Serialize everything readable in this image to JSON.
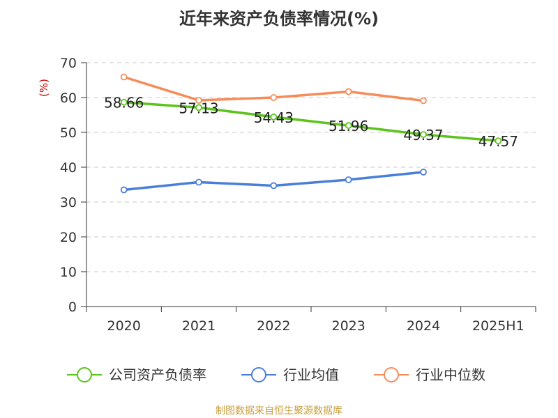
{
  "chart_data": {
    "type": "line",
    "title": "近年来资产负债率情况(%)",
    "ylabel": "(%)",
    "xlabel": "",
    "categories": [
      "2020",
      "2021",
      "2022",
      "2023",
      "2024",
      "2025H1"
    ],
    "ylim": [
      0,
      70
    ],
    "yticks": [
      0,
      10,
      20,
      30,
      40,
      50,
      60,
      70
    ],
    "grid": true,
    "legend_position": "bottom",
    "series": [
      {
        "name": "公司资产负债率",
        "color": "#5cc41c",
        "values": [
          58.66,
          57.13,
          54.43,
          51.96,
          49.37,
          47.57
        ],
        "data_labels": [
          "58.66",
          "57.13",
          "54.43",
          "51.96",
          "49.37",
          "47.57"
        ]
      },
      {
        "name": "行业均值",
        "color": "#4a7fd9",
        "values": [
          33.5,
          35.7,
          34.7,
          36.4,
          38.6,
          null
        ]
      },
      {
        "name": "行业中位数",
        "color": "#f58c5a",
        "values": [
          65.9,
          59.2,
          60.0,
          61.7,
          59.1,
          null
        ]
      }
    ]
  },
  "source": "制图数据来自恒生聚源数据库"
}
